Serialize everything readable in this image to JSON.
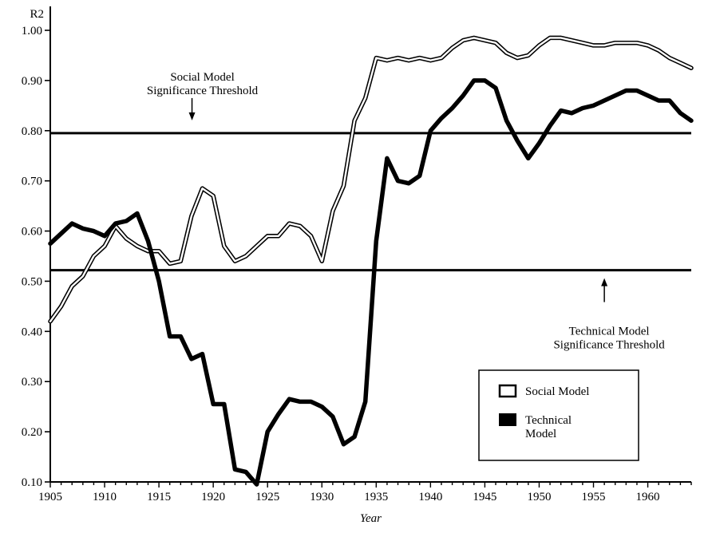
{
  "chart_data": {
    "type": "line",
    "title": "",
    "xlabel": "Year",
    "ylabel": "R2",
    "xlim": [
      1905,
      1964
    ],
    "ylim": [
      0.1,
      1.0
    ],
    "xticks": [
      1905,
      1910,
      1915,
      1920,
      1925,
      1930,
      1935,
      1940,
      1945,
      1950,
      1955,
      1960
    ],
    "xtick_labels": [
      "1905",
      "1910",
      "1915",
      "1920",
      "1925",
      "1930",
      "1935",
      "1940",
      "1945",
      "1950",
      "1955",
      "1960"
    ],
    "yticks": [
      0.1,
      0.2,
      0.3,
      0.4,
      0.5,
      0.6,
      0.7,
      0.8,
      0.9,
      1.0
    ],
    "ytick_labels": [
      "0.10",
      "0.20",
      "0.30",
      "0.40",
      "0.50",
      "0.60",
      "0.70",
      "0.80",
      "0.90",
      "1.00"
    ],
    "grid": false,
    "legend_position": "bottom-right",
    "thresholds": [
      {
        "name": "social-threshold",
        "value": 0.795,
        "label_lines": [
          "Social Model",
          "Significance Threshold"
        ],
        "arrow": "down",
        "label_year": 1919
      },
      {
        "name": "technical-threshold",
        "value": 0.522,
        "label_lines": [
          "Technical Model",
          "Significance Threshold"
        ],
        "arrow": "up",
        "label_year": 1956
      }
    ],
    "x": [
      1905,
      1906,
      1907,
      1908,
      1909,
      1910,
      1911,
      1912,
      1913,
      1914,
      1915,
      1916,
      1917,
      1918,
      1919,
      1920,
      1921,
      1922,
      1923,
      1924,
      1925,
      1926,
      1927,
      1928,
      1929,
      1930,
      1931,
      1932,
      1933,
      1934,
      1935,
      1936,
      1937,
      1938,
      1939,
      1940,
      1941,
      1942,
      1943,
      1944,
      1945,
      1946,
      1947,
      1948,
      1949,
      1950,
      1951,
      1952,
      1953,
      1954,
      1955,
      1956,
      1957,
      1958,
      1959,
      1960,
      1961,
      1962,
      1963,
      1964
    ],
    "series": [
      {
        "name": "Social Model",
        "style": "hollow",
        "values": [
          0.42,
          0.45,
          0.49,
          0.51,
          0.55,
          0.57,
          0.61,
          0.585,
          0.57,
          0.56,
          0.56,
          0.535,
          0.54,
          0.63,
          0.685,
          0.67,
          0.57,
          0.54,
          0.55,
          0.57,
          0.59,
          0.59,
          0.615,
          0.61,
          0.59,
          0.54,
          0.64,
          0.69,
          0.82,
          0.865,
          0.945,
          0.94,
          0.945,
          0.94,
          0.945,
          0.94,
          0.945,
          0.965,
          0.98,
          0.985,
          0.98,
          0.975,
          0.955,
          0.945,
          0.95,
          0.97,
          0.985,
          0.985,
          0.98,
          0.975,
          0.97,
          0.97,
          0.975,
          0.975,
          0.975,
          0.97,
          0.96,
          0.945,
          0.935,
          0.925
        ]
      },
      {
        "name": "Technical Model",
        "style": "solid",
        "values": [
          0.575,
          0.595,
          0.615,
          0.605,
          0.6,
          0.59,
          0.615,
          0.62,
          0.635,
          0.58,
          0.5,
          0.39,
          0.39,
          0.345,
          0.355,
          0.255,
          0.255,
          0.125,
          0.12,
          0.095,
          0.2,
          0.235,
          0.265,
          0.26,
          0.26,
          0.25,
          0.23,
          0.175,
          0.19,
          0.26,
          0.58,
          0.745,
          0.7,
          0.695,
          0.71,
          0.8,
          0.825,
          0.845,
          0.87,
          0.9,
          0.9,
          0.885,
          0.82,
          0.78,
          0.745,
          0.775,
          0.81,
          0.84,
          0.835,
          0.845,
          0.85,
          0.86,
          0.87,
          0.88,
          0.88,
          0.87,
          0.86,
          0.86,
          0.835,
          0.82
        ]
      }
    ]
  }
}
